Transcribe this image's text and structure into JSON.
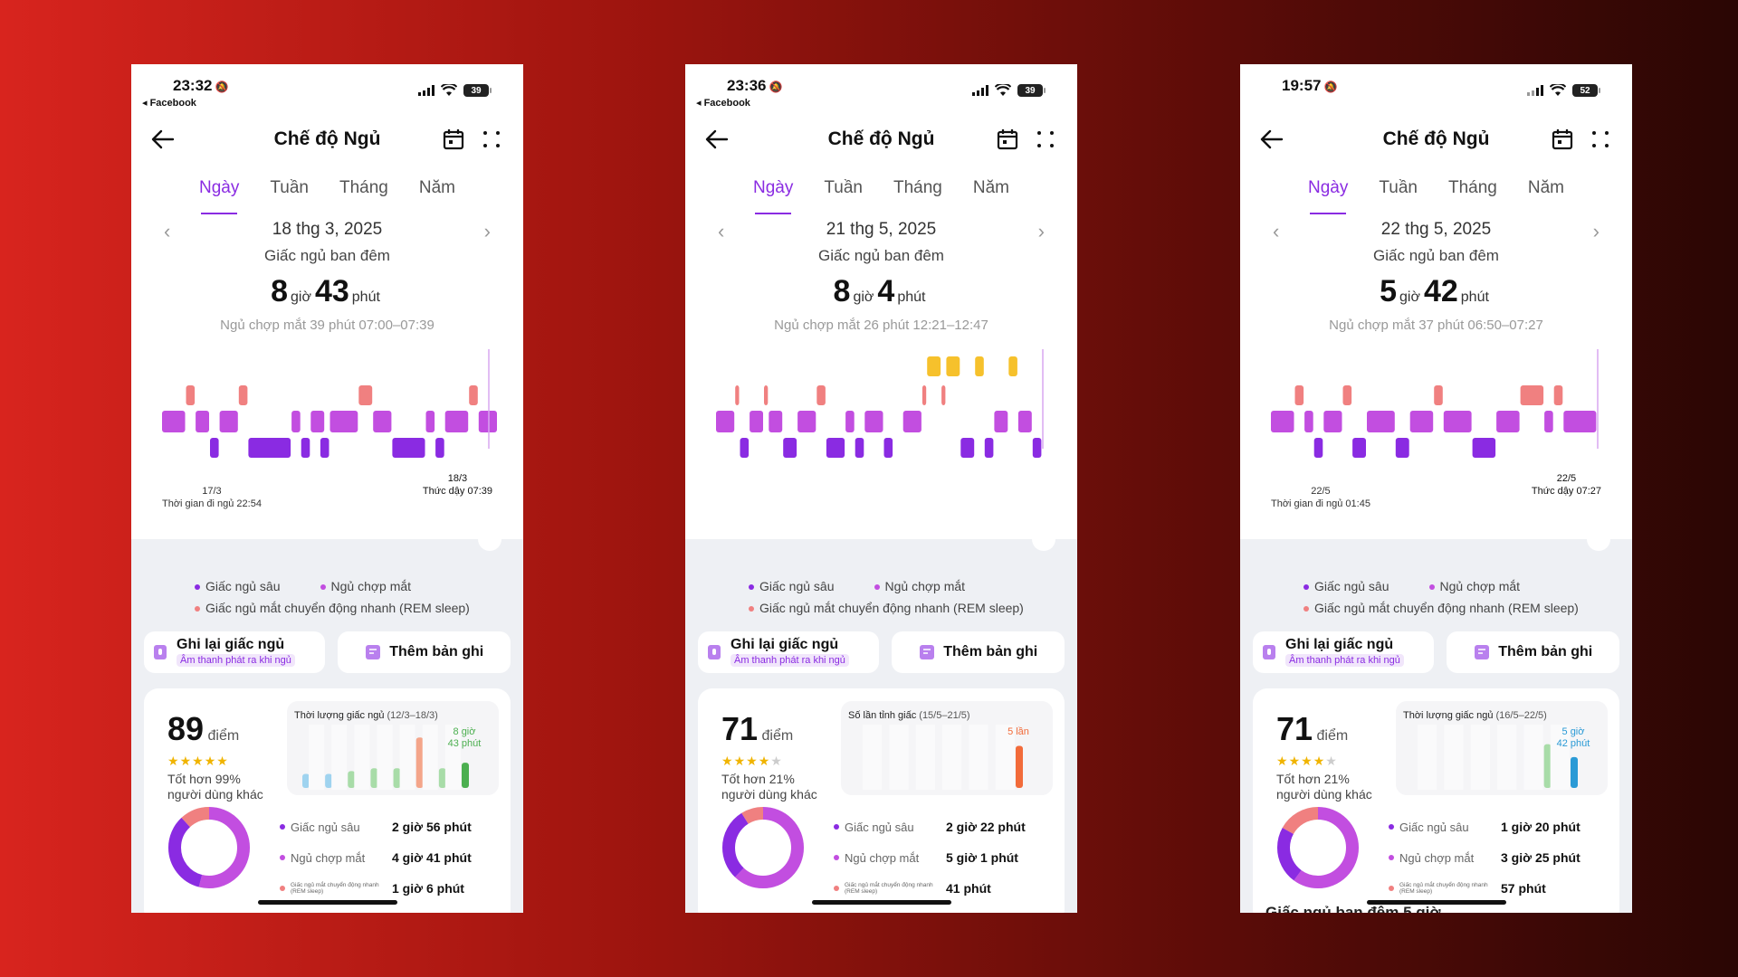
{
  "phones": [
    {
      "status": {
        "time": "23:32",
        "sub_app": "◂ Facebook",
        "battery": "39"
      },
      "header": {
        "title": "Chế độ Ngủ"
      },
      "tabs": [
        "Ngày",
        "Tuần",
        "Tháng",
        "Năm"
      ],
      "date": "18 thg 3, 2025",
      "night_label": "Giấc ngủ ban đêm",
      "duration": {
        "hours": "8",
        "hours_unit": "giờ",
        "minutes": "43",
        "minutes_unit": "phút"
      },
      "nap": "Ngủ chợp mắt 39 phút 07:00–07:39",
      "chart_labels": {
        "start_date": "17/3",
        "start_text": "Thời gian đi ngủ 22:54",
        "end_date": "18/3",
        "end_text": "Thức dậy 07:39"
      },
      "legend": {
        "deep": "Giấc ngủ sâu",
        "light": "Ngủ chợp mắt",
        "rem": "Giấc ngủ mắt chuyển động nhanh (REM sleep)"
      },
      "buttons": {
        "record": "Ghi lại giấc ngủ",
        "record_sub": "Âm thanh phát ra khi ngủ",
        "add": "Thêm bản ghi"
      },
      "score": {
        "value": "89",
        "unit": "điểm",
        "stars": 4.5,
        "better": "Tốt hơn 99%",
        "better2": "người dùng khác"
      },
      "mini_chart": {
        "title": "Thời lượng giấc ngủ",
        "range": "(12/3–18/3)",
        "highlight": "8 giờ\n43 phút"
      },
      "stages": [
        {
          "name": "Giấc ngủ sâu",
          "value": "2 giờ 56 phút"
        },
        {
          "name": "Ngủ chợp mắt",
          "value": "4 giờ 41 phút"
        },
        {
          "name": "Giấc ngủ mắt chuyển động nhanh (REM sleep)",
          "value": "1 giờ 6 phút"
        }
      ],
      "donut": [
        0.34,
        0.54,
        0.12
      ],
      "footer": ""
    },
    {
      "status": {
        "time": "23:36",
        "sub_app": "◂ Facebook",
        "battery": "39"
      },
      "header": {
        "title": "Chế độ Ngủ"
      },
      "tabs": [
        "Ngày",
        "Tuần",
        "Tháng",
        "Năm"
      ],
      "date": "21 thg 5, 2025",
      "night_label": "Giấc ngủ ban đêm",
      "duration": {
        "hours": "8",
        "hours_unit": "giờ",
        "minutes": "4",
        "minutes_unit": "phút"
      },
      "nap": "Ngủ chợp mắt 26 phút 12:21–12:47",
      "chart_labels": {
        "start_date": "",
        "start_text": "",
        "end_date": "",
        "end_text": ""
      },
      "legend": {
        "deep": "Giấc ngủ sâu",
        "light": "Ngủ chợp mắt",
        "rem": "Giấc ngủ mắt chuyển động nhanh (REM sleep)"
      },
      "buttons": {
        "record": "Ghi lại giấc ngủ",
        "record_sub": "Âm thanh phát ra khi ngủ",
        "add": "Thêm bản ghi"
      },
      "score": {
        "value": "71",
        "unit": "điểm",
        "stars": 4,
        "better": "Tốt hơn 21%",
        "better2": "người dùng khác"
      },
      "mini_chart": {
        "title": "Số lần tỉnh giấc",
        "range": "(15/5–21/5)",
        "highlight": "5 lần"
      },
      "stages": [
        {
          "name": "Giấc ngủ sâu",
          "value": "2 giờ 22 phút"
        },
        {
          "name": "Ngủ chợp mắt",
          "value": "5 giờ 1 phút"
        },
        {
          "name": "Giấc ngủ mắt chuyển động nhanh (REM sleep)",
          "value": "41 phút"
        }
      ],
      "donut": [
        0.29,
        0.62,
        0.09
      ],
      "footer": ""
    },
    {
      "status": {
        "time": "19:57",
        "sub_app": "",
        "battery": "52"
      },
      "header": {
        "title": "Chế độ Ngủ"
      },
      "tabs": [
        "Ngày",
        "Tuần",
        "Tháng",
        "Năm"
      ],
      "date": "22 thg 5, 2025",
      "night_label": "Giấc ngủ ban đêm",
      "duration": {
        "hours": "5",
        "hours_unit": "giờ",
        "minutes": "42",
        "minutes_unit": "phút"
      },
      "nap": "Ngủ chợp mắt 37 phút 06:50–07:27",
      "chart_labels": {
        "start_date": "22/5",
        "start_text": "Thời gian đi ngủ 01:45",
        "end_date": "22/5",
        "end_text": "Thức dậy 07:27"
      },
      "legend": {
        "deep": "Giấc ngủ sâu",
        "light": "Ngủ chợp mắt",
        "rem": "Giấc ngủ mắt chuyển động nhanh (REM sleep)"
      },
      "buttons": {
        "record": "Ghi lại giấc ngủ",
        "record_sub": "Âm thanh phát ra khi ngủ",
        "add": "Thêm bản ghi"
      },
      "score": {
        "value": "71",
        "unit": "điểm",
        "stars": 4,
        "better": "Tốt hơn 21%",
        "better2": "người dùng khác"
      },
      "mini_chart": {
        "title": "Thời lượng giấc ngủ",
        "range": "(16/5–22/5)",
        "highlight": "5 giờ\n42 phút"
      },
      "stages": [
        {
          "name": "Giấc ngủ sâu",
          "value": "1 giờ 20 phút"
        },
        {
          "name": "Ngủ chợp mắt",
          "value": "3 giờ 25 phút"
        },
        {
          "name": "Giấc ngủ mắt chuyển động nhanh (REM sleep)",
          "value": "57 phút"
        }
      ],
      "donut": [
        0.23,
        0.6,
        0.17
      ],
      "footer": "Giấc ngủ ban đêm 5 giờ"
    }
  ],
  "colors": {
    "deep": "#8a2be2",
    "light": "#c24ee0",
    "rem": "#f08080",
    "awake": "#f6c12c",
    "accent": "#8a2be2"
  }
}
